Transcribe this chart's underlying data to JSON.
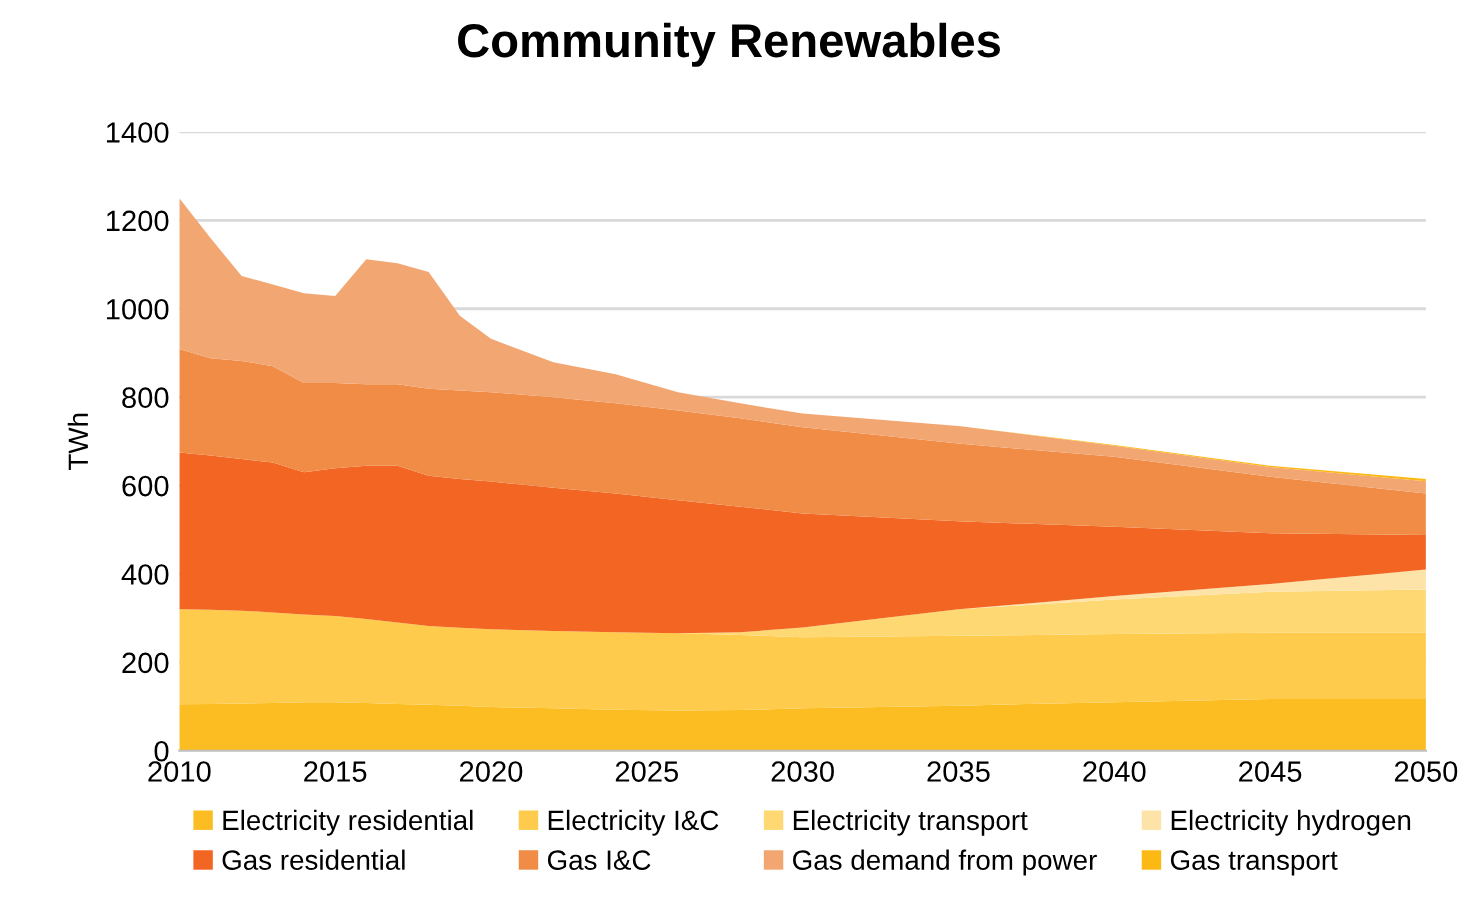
{
  "chart_data": {
    "type": "area",
    "stacked": true,
    "title": "Community Renewables",
    "ylabel": "TWh",
    "x": [
      2010,
      2011,
      2012,
      2013,
      2014,
      2015,
      2016,
      2017,
      2018,
      2019,
      2020,
      2022,
      2024,
      2026,
      2028,
      2030,
      2035,
      2040,
      2045,
      2050
    ],
    "series": [
      {
        "name": "Electricity residential",
        "color": "#fbbd22",
        "values": [
          105,
          106,
          107,
          108,
          110,
          110,
          108,
          106,
          104,
          102,
          99,
          96,
          93,
          91,
          92,
          96,
          102,
          110,
          117,
          117
        ]
      },
      {
        "name": "Electricity I&C",
        "color": "#fecb4d",
        "values": [
          215,
          213,
          210,
          205,
          198,
          195,
          190,
          184,
          178,
          176,
          176,
          175,
          175,
          175,
          170,
          161,
          158,
          154,
          150,
          150
        ]
      },
      {
        "name": "Electricity transport",
        "color": "#fdd873",
        "values": [
          0,
          0,
          0,
          0,
          0,
          0,
          0,
          0,
          0,
          0,
          0,
          0,
          0,
          0,
          6,
          22,
          60,
          78,
          93,
          98
        ]
      },
      {
        "name": "Electricity hydrogen",
        "color": "#fde3a7",
        "values": [
          0,
          0,
          0,
          0,
          0,
          0,
          0,
          0,
          0,
          0,
          0,
          0,
          0,
          0,
          0,
          0,
          0,
          8,
          17,
          45
        ]
      },
      {
        "name": "Gas residential",
        "color": "#f26522",
        "values": [
          355,
          349,
          343,
          339,
          322,
          334,
          347,
          355,
          340,
          337,
          334,
          324,
          314,
          301,
          284,
          258,
          199,
          157,
          115,
          78
        ]
      },
      {
        "name": "Gas I&C",
        "color": "#f08c46",
        "values": [
          234,
          220,
          222,
          218,
          202,
          193,
          184,
          184,
          197,
          200,
          202,
          205,
          204,
          203,
          200,
          195,
          176,
          158,
          128,
          94
        ]
      },
      {
        "name": "Gas demand from power",
        "color": "#f2a672",
        "values": [
          341,
          272,
          192,
          185,
          203,
          197,
          283,
          274,
          264,
          169,
          121,
          79,
          66,
          41,
          34,
          31,
          40,
          25,
          22,
          28
        ]
      },
      {
        "name": "Gas transport",
        "color": "#fdb913",
        "values": [
          0,
          0,
          0,
          0,
          0,
          0,
          0,
          0,
          0,
          0,
          0,
          0,
          0,
          0,
          0,
          0,
          0,
          2,
          3,
          5
        ]
      }
    ],
    "xlim": [
      2010,
      2050
    ],
    "xticks": [
      2010,
      2015,
      2020,
      2025,
      2030,
      2035,
      2040,
      2045,
      2050
    ],
    "ylim": [
      0,
      1400
    ],
    "yticks": [
      0,
      200,
      400,
      600,
      800,
      1000,
      1200,
      1400
    ],
    "grid": "y",
    "legend": "bottom"
  }
}
